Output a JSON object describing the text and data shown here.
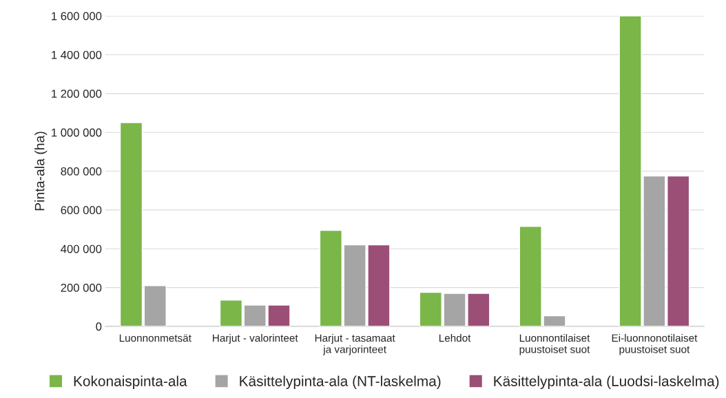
{
  "chart_data": {
    "type": "bar",
    "ylabel": "Pinta-ala (ha)",
    "categories": [
      "Luonnonmetsät",
      "Harjut - valorinteet",
      "Harjut - tasamaat\nja varjorinteet",
      "Lehdot",
      "Luonnontilaiset\npuustoiset suot",
      "Ei-luonnonotilaiset\npuustoiset suot"
    ],
    "series": [
      {
        "name": "Kokonaispinta-ala",
        "color": "#7ab648",
        "values": [
          1050000,
          135000,
          495000,
          175000,
          515000,
          1600000
        ]
      },
      {
        "name": "Käsittelypinta-ala (NT-laskelma)",
        "color": "#a5a5a5",
        "values": [
          210000,
          110000,
          420000,
          170000,
          55000,
          775000
        ]
      },
      {
        "name": "Käsittelypinta-ala (Luodsi-laskelma)",
        "color": "#9b4f76",
        "values": [
          null,
          110000,
          420000,
          170000,
          null,
          775000
        ]
      }
    ],
    "ylim": [
      0,
      1600000
    ],
    "yticks": [
      0,
      {
        "value": 200000,
        "label": "200 000"
      },
      {
        "value": 400000,
        "label": "400 000"
      },
      {
        "value": 600000,
        "label": "600 000"
      },
      {
        "value": 800000,
        "label": "800 000"
      },
      {
        "value": 1000000,
        "label": "1 000 000"
      },
      {
        "value": 1200000,
        "label": "1 200 000"
      },
      {
        "value": 1400000,
        "label": "1 400 000"
      },
      {
        "value": 1600000,
        "label": "1 600 000"
      }
    ],
    "grid": "y",
    "legend": "bottom"
  }
}
